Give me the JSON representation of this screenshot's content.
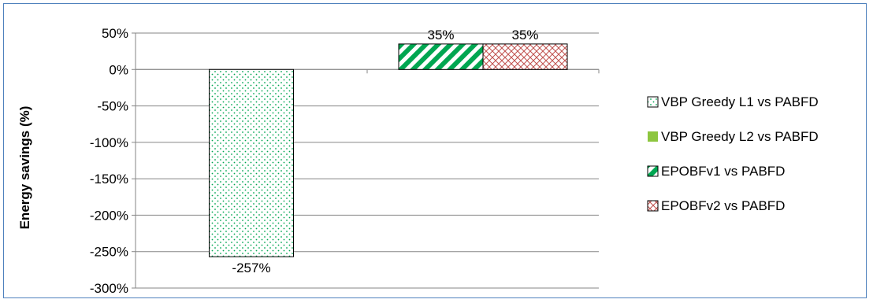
{
  "chart_data": {
    "type": "bar",
    "title": "",
    "xlabel": "",
    "ylabel": "Energy savings (%)",
    "ylim": [
      -300,
      50
    ],
    "yticks": [
      50,
      0,
      -50,
      -100,
      -150,
      -200,
      -250,
      -300
    ],
    "ytick_labels": [
      "50%",
      "0%",
      "-50%",
      "-100%",
      "-150%",
      "-200%",
      "-250%",
      "-300%"
    ],
    "grid": true,
    "legend_position": "right",
    "groups": 2,
    "series": [
      {
        "name": "VBP Greedy L1 vs PABFD",
        "values": [
          -257,
          null
        ],
        "labels": [
          "-257%",
          ""
        ],
        "color": "#00a651",
        "pattern": "dots"
      },
      {
        "name": "VBP Greedy L2 vs PABFD",
        "values": [
          null,
          null
        ],
        "labels": [
          "",
          ""
        ],
        "color": "#8dc63f",
        "pattern": "solid"
      },
      {
        "name": "EPOBFv1 vs PABFD",
        "values": [
          null,
          35
        ],
        "labels": [
          "",
          "35%"
        ],
        "color": "#00a651",
        "pattern": "diagonal"
      },
      {
        "name": "EPOBFv2 vs PABFD",
        "values": [
          null,
          35
        ],
        "labels": [
          "",
          "35%"
        ],
        "color": "#c0504d",
        "pattern": "crosshatch"
      }
    ]
  }
}
